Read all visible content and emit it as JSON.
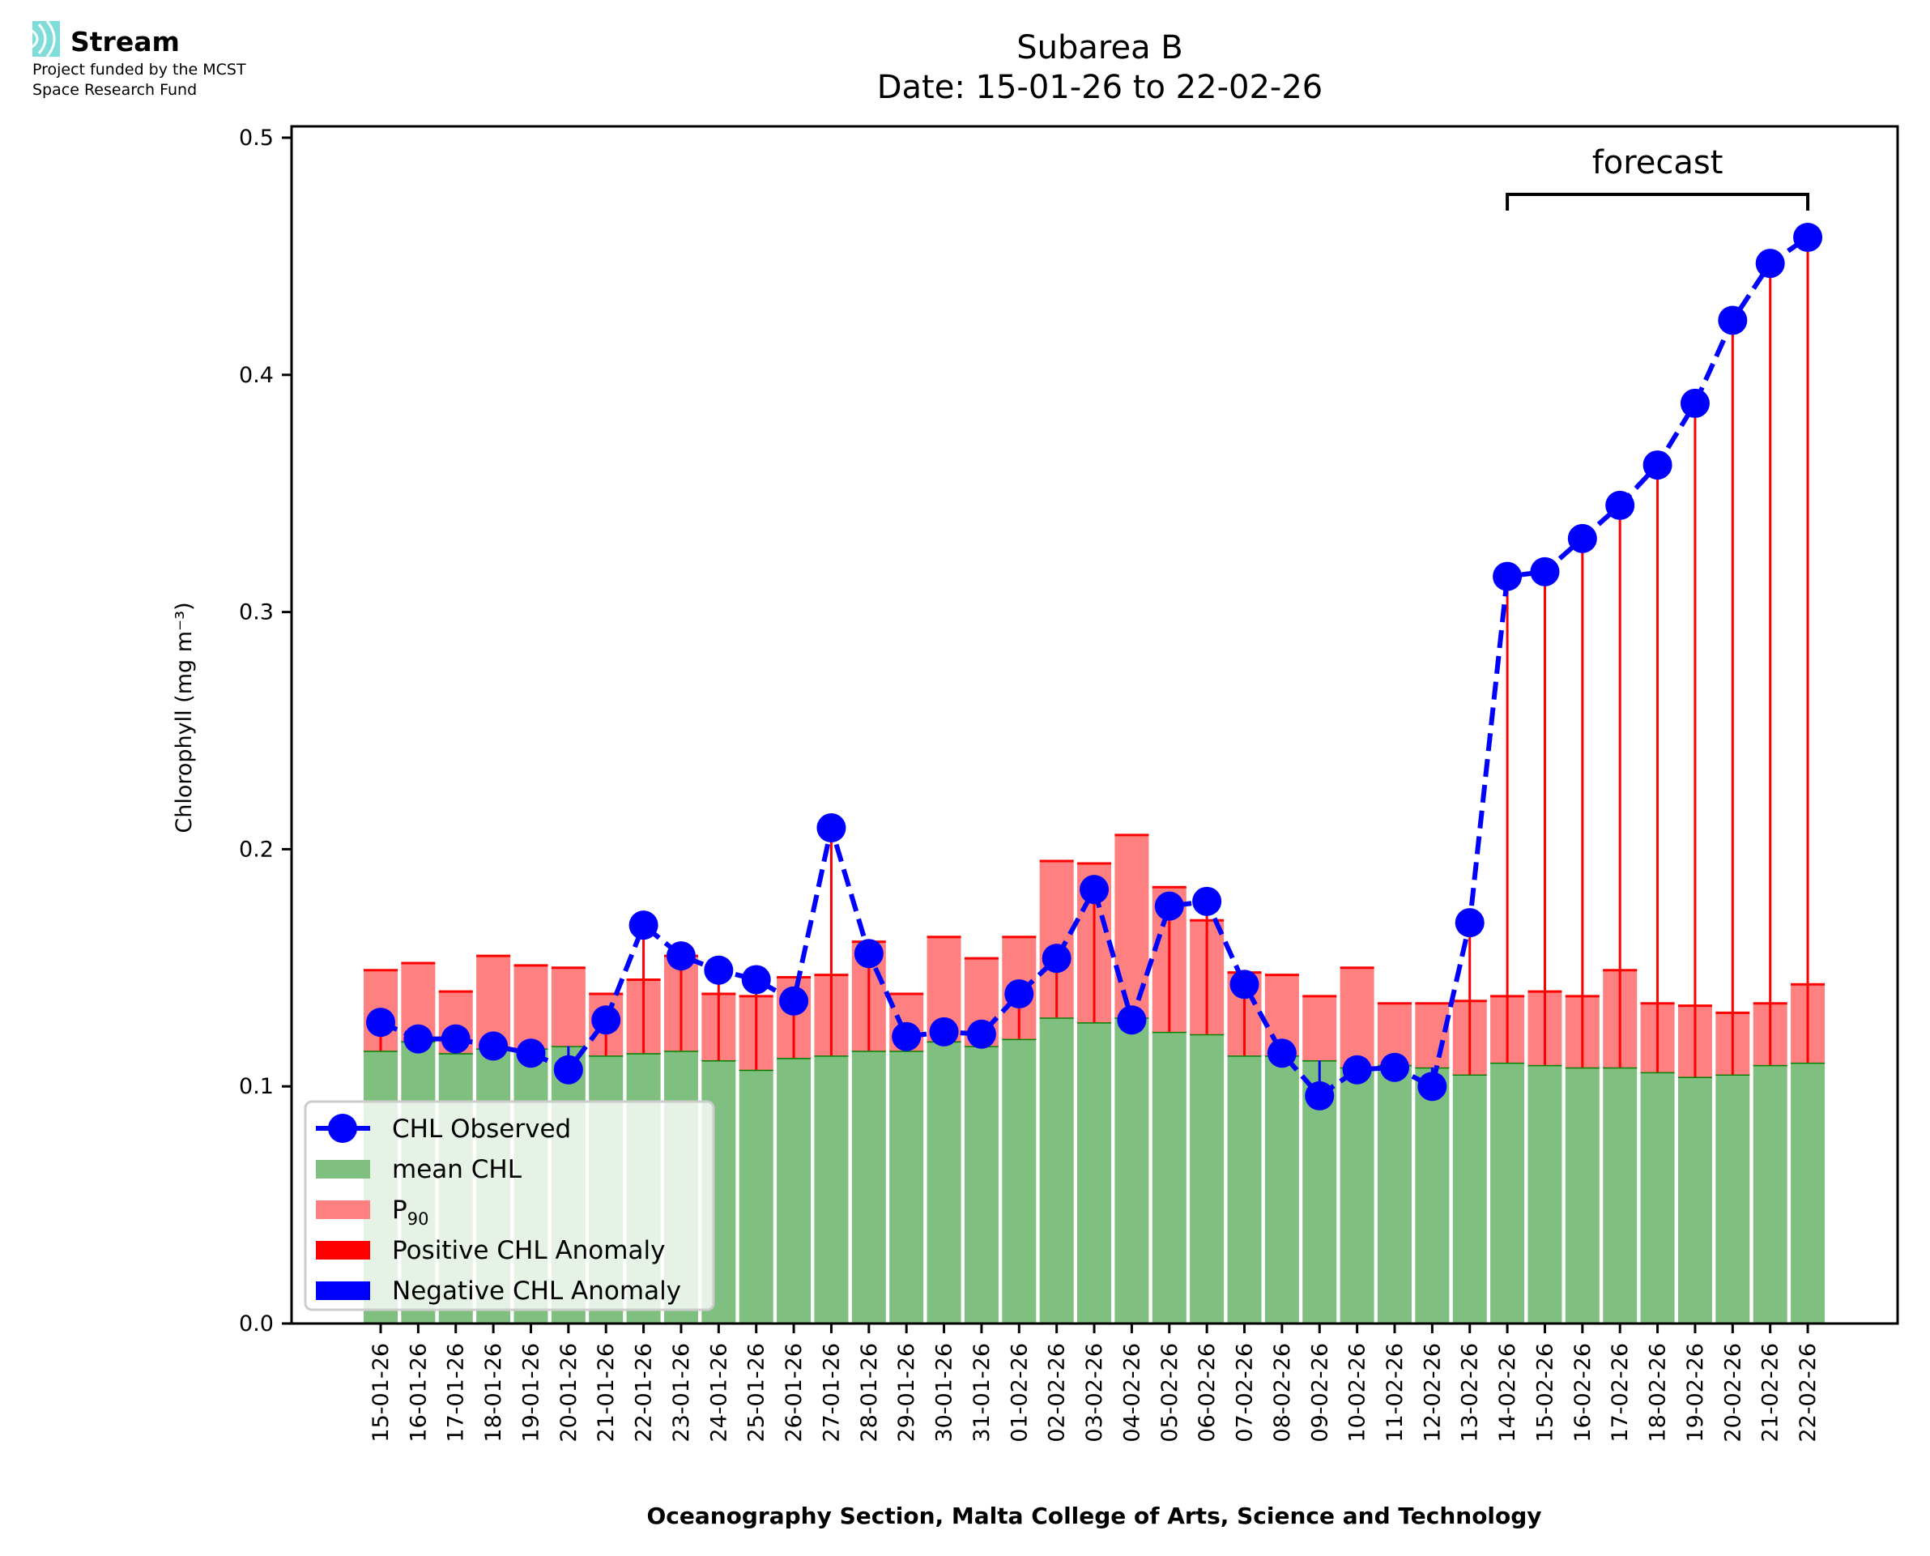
{
  "logo": {
    "name": "Stream",
    "subtitle_line1": "Project funded by the MCST",
    "subtitle_line2": "Space Research Fund",
    "accent_color": "#7fdcd9",
    "icon": "stream-waves-icon"
  },
  "chart_data": {
    "type": "bar",
    "title": "Subarea B",
    "subtitle": "Date: 15-01-26 to 22-02-26",
    "xlabel": "Oceanography Section, Malta College of Arts, Science and Technology",
    "ylabel": "Chlorophyll (mg m⁻³)",
    "ylim": [
      0,
      0.5
    ],
    "yticks": [
      0.0,
      0.1,
      0.2,
      0.3,
      0.4,
      0.5
    ],
    "ytick_labels": [
      "0.0",
      "0.1",
      "0.2",
      "0.3",
      "0.4",
      "0.5"
    ],
    "grid": false,
    "legend_position": "lower-left",
    "categories": [
      "15-01-26",
      "16-01-26",
      "17-01-26",
      "18-01-26",
      "19-01-26",
      "20-01-26",
      "21-01-26",
      "22-01-26",
      "23-01-26",
      "24-01-26",
      "25-01-26",
      "26-01-26",
      "27-01-26",
      "28-01-26",
      "29-01-26",
      "30-01-26",
      "31-01-26",
      "01-02-26",
      "02-02-26",
      "03-02-26",
      "04-02-26",
      "05-02-26",
      "06-02-26",
      "07-02-26",
      "08-02-26",
      "09-02-26",
      "10-02-26",
      "11-02-26",
      "12-02-26",
      "13-02-26",
      "14-02-26",
      "15-02-26",
      "16-02-26",
      "17-02-26",
      "18-02-26",
      "19-02-26",
      "20-02-26",
      "21-02-26",
      "22-02-26"
    ],
    "series": [
      {
        "name": "mean CHL",
        "kind": "bar",
        "color": "#7fbf7f",
        "edge_color": "#008000",
        "values": [
          0.115,
          0.119,
          0.114,
          0.116,
          0.116,
          0.117,
          0.113,
          0.114,
          0.115,
          0.111,
          0.107,
          0.112,
          0.113,
          0.115,
          0.115,
          0.119,
          0.117,
          0.12,
          0.129,
          0.127,
          0.129,
          0.123,
          0.122,
          0.113,
          0.113,
          0.111,
          0.108,
          0.109,
          0.108,
          0.105,
          0.11,
          0.109,
          0.108,
          0.108,
          0.106,
          0.104,
          0.105,
          0.109,
          0.11
        ]
      },
      {
        "name": "P₉₀",
        "kind": "bar",
        "color": "#ff8080",
        "edge_color": "#ff0000",
        "values": [
          0.149,
          0.152,
          0.14,
          0.155,
          0.151,
          0.15,
          0.139,
          0.145,
          0.155,
          0.139,
          0.138,
          0.146,
          0.147,
          0.161,
          0.139,
          0.163,
          0.154,
          0.163,
          0.195,
          0.194,
          0.206,
          0.184,
          0.17,
          0.148,
          0.147,
          0.138,
          0.15,
          0.135,
          0.135,
          0.136,
          0.138,
          0.14,
          0.138,
          0.149,
          0.135,
          0.134,
          0.131,
          0.135,
          0.143
        ]
      },
      {
        "name": "CHL Observed",
        "kind": "line",
        "color": "#0000ff",
        "linestyle": "dashed",
        "marker": "circle",
        "values": [
          0.127,
          0.12,
          0.12,
          0.117,
          0.114,
          0.107,
          0.128,
          0.168,
          0.155,
          0.149,
          0.145,
          0.136,
          0.209,
          0.156,
          0.121,
          0.123,
          0.122,
          0.139,
          0.154,
          0.183,
          0.128,
          0.176,
          0.178,
          0.143,
          0.114,
          0.096,
          0.107,
          0.108,
          0.1,
          0.169,
          0.315,
          0.317,
          0.331,
          0.345,
          0.362,
          0.388,
          0.423,
          0.447,
          0.458
        ]
      }
    ],
    "anomaly_colors": {
      "positive": "#ff0000",
      "negative": "#0000ff"
    },
    "legend": [
      {
        "label": "CHL Observed",
        "swatch": "line-marker",
        "color": "#0000ff"
      },
      {
        "label": "mean CHL",
        "swatch": "patch",
        "color": "#7fbf7f"
      },
      {
        "label": "P",
        "sub": "90",
        "swatch": "patch",
        "color": "#ff8080"
      },
      {
        "label": "Positive CHL Anomaly",
        "swatch": "patch",
        "color": "#ff0000"
      },
      {
        "label": "Negative CHL Anomaly",
        "swatch": "patch",
        "color": "#0000ff"
      }
    ],
    "annotations": [
      {
        "text": "forecast",
        "type": "bracket",
        "from": "14-02-26",
        "to": "22-02-26"
      }
    ]
  }
}
